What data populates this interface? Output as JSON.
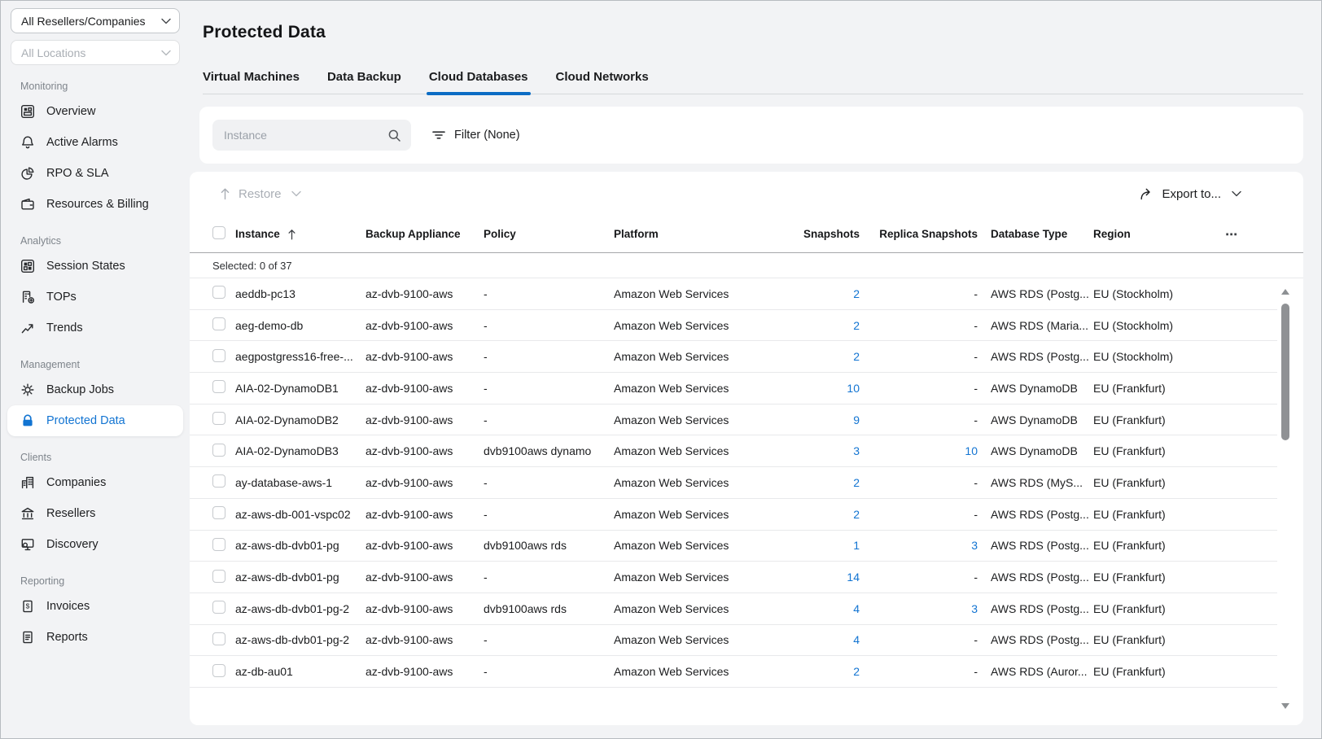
{
  "colors": {
    "accent": "#0b6cc4",
    "link": "#1274d2",
    "disabled_text": "#a9aeb5"
  },
  "org_filter": {
    "resellers_value": "All Resellers/Companies",
    "locations_placeholder": "All Locations"
  },
  "sidebar": {
    "sections": [
      {
        "label": "Monitoring",
        "items": [
          {
            "label": "Overview",
            "icon": "overview-icon"
          },
          {
            "label": "Active Alarms",
            "icon": "active-alarms-icon"
          },
          {
            "label": "RPO & SLA",
            "icon": "rpo-sla-icon"
          },
          {
            "label": "Resources & Billing",
            "icon": "resources-billing-icon"
          }
        ]
      },
      {
        "label": "Analytics",
        "items": [
          {
            "label": "Session States",
            "icon": "session-states-icon"
          },
          {
            "label": "TOPs",
            "icon": "tops-icon"
          },
          {
            "label": "Trends",
            "icon": "trends-icon"
          }
        ]
      },
      {
        "label": "Management",
        "items": [
          {
            "label": "Backup Jobs",
            "icon": "backup-jobs-icon"
          },
          {
            "label": "Protected Data",
            "icon": "protected-data-icon",
            "active": true
          }
        ]
      },
      {
        "label": "Clients",
        "items": [
          {
            "label": "Companies",
            "icon": "companies-icon"
          },
          {
            "label": "Resellers",
            "icon": "resellers-icon"
          },
          {
            "label": "Discovery",
            "icon": "discovery-icon"
          }
        ]
      },
      {
        "label": "Reporting",
        "items": [
          {
            "label": "Invoices",
            "icon": "invoices-icon"
          },
          {
            "label": "Reports",
            "icon": "reports-icon"
          }
        ]
      }
    ]
  },
  "page": {
    "title": "Protected Data"
  },
  "tabs": [
    {
      "label": "Virtual Machines"
    },
    {
      "label": "Data Backup"
    },
    {
      "label": "Cloud Databases",
      "active": true
    },
    {
      "label": "Cloud Networks"
    }
  ],
  "search": {
    "placeholder": "Instance",
    "filter_label": "Filter (None)"
  },
  "toolbar": {
    "restore_label": "Restore",
    "export_label": "Export to..."
  },
  "table": {
    "columns": {
      "instance": "Instance",
      "backup_appliance": "Backup Appliance",
      "policy": "Policy",
      "platform": "Platform",
      "snapshots": "Snapshots",
      "replica_snapshots": "Replica Snapshots",
      "database_type": "Database Type",
      "region": "Region"
    },
    "more_label": "⋯",
    "selected_summary": "Selected: 0 of 37",
    "rows": [
      {
        "instance": "aeddb-pc13",
        "appliance": "az-dvb-9100-aws",
        "policy": "-",
        "platform": "Amazon Web Services",
        "snapshots": "2",
        "replica": "-",
        "dbtype": "AWS RDS (Postg...",
        "region": "EU (Stockholm)"
      },
      {
        "instance": "aeg-demo-db",
        "appliance": "az-dvb-9100-aws",
        "policy": "-",
        "platform": "Amazon Web Services",
        "snapshots": "2",
        "replica": "-",
        "dbtype": "AWS RDS (Maria...",
        "region": "EU (Stockholm)"
      },
      {
        "instance": "aegpostgress16-free-...",
        "appliance": "az-dvb-9100-aws",
        "policy": "-",
        "platform": "Amazon Web Services",
        "snapshots": "2",
        "replica": "-",
        "dbtype": "AWS RDS (Postg...",
        "region": "EU (Stockholm)"
      },
      {
        "instance": "AIA-02-DynamoDB1",
        "appliance": "az-dvb-9100-aws",
        "policy": "-",
        "platform": "Amazon Web Services",
        "snapshots": "10",
        "replica": "-",
        "dbtype": "AWS DynamoDB",
        "region": "EU (Frankfurt)"
      },
      {
        "instance": "AIA-02-DynamoDB2",
        "appliance": "az-dvb-9100-aws",
        "policy": "-",
        "platform": "Amazon Web Services",
        "snapshots": "9",
        "replica": "-",
        "dbtype": "AWS DynamoDB",
        "region": "EU (Frankfurt)"
      },
      {
        "instance": "AIA-02-DynamoDB3",
        "appliance": "az-dvb-9100-aws",
        "policy": "dvb9100aws dynamo",
        "platform": "Amazon Web Services",
        "snapshots": "3",
        "replica": "10",
        "dbtype": "AWS DynamoDB",
        "region": "EU (Frankfurt)"
      },
      {
        "instance": "ay-database-aws-1",
        "appliance": "az-dvb-9100-aws",
        "policy": "-",
        "platform": "Amazon Web Services",
        "snapshots": "2",
        "replica": "-",
        "dbtype": "AWS RDS (MyS...",
        "region": "EU (Frankfurt)"
      },
      {
        "instance": "az-aws-db-001-vspc02",
        "appliance": "az-dvb-9100-aws",
        "policy": "-",
        "platform": "Amazon Web Services",
        "snapshots": "2",
        "replica": "-",
        "dbtype": "AWS RDS (Postg...",
        "region": "EU (Frankfurt)"
      },
      {
        "instance": "az-aws-db-dvb01-pg",
        "appliance": "az-dvb-9100-aws",
        "policy": "dvb9100aws rds",
        "platform": "Amazon Web Services",
        "snapshots": "1",
        "replica": "3",
        "dbtype": "AWS RDS (Postg...",
        "region": "EU (Frankfurt)"
      },
      {
        "instance": "az-aws-db-dvb01-pg",
        "appliance": "az-dvb-9100-aws",
        "policy": "-",
        "platform": "Amazon Web Services",
        "snapshots": "14",
        "replica": "-",
        "dbtype": "AWS RDS (Postg...",
        "region": "EU (Frankfurt)"
      },
      {
        "instance": "az-aws-db-dvb01-pg-2",
        "appliance": "az-dvb-9100-aws",
        "policy": "dvb9100aws rds",
        "platform": "Amazon Web Services",
        "snapshots": "4",
        "replica": "3",
        "dbtype": "AWS RDS (Postg...",
        "region": "EU (Frankfurt)"
      },
      {
        "instance": "az-aws-db-dvb01-pg-2",
        "appliance": "az-dvb-9100-aws",
        "policy": "-",
        "platform": "Amazon Web Services",
        "snapshots": "4",
        "replica": "-",
        "dbtype": "AWS RDS (Postg...",
        "region": "EU (Frankfurt)"
      },
      {
        "instance": "az-db-au01",
        "appliance": "az-dvb-9100-aws",
        "policy": "-",
        "platform": "Amazon Web Services",
        "snapshots": "2",
        "replica": "-",
        "dbtype": "AWS RDS (Auror...",
        "region": "EU (Frankfurt)"
      }
    ]
  }
}
